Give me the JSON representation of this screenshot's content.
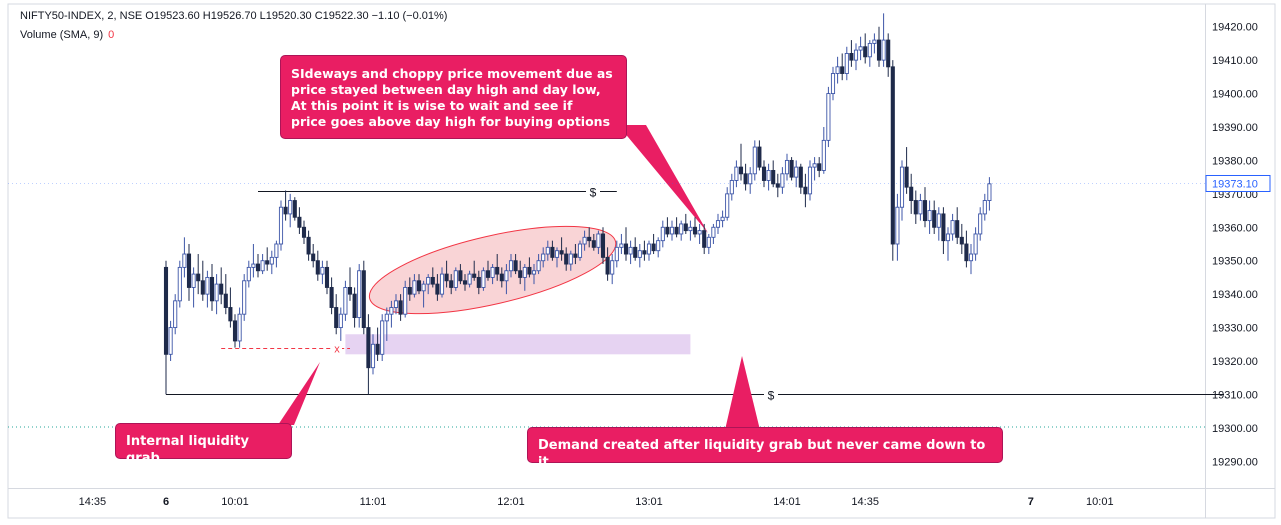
{
  "header": {
    "symbol_line": "NIFTY50-INDEX, 2, NSE  O19523.60  H19526.70  L19520.30  C19522.30  −1.10 (−0.01%)",
    "volume_label": "Volume (SMA, 9)",
    "volume_value": "0"
  },
  "colors": {
    "up_candle": "#3d56a8",
    "down_candle": "#1e2a4a",
    "callout_bg": "#e91e63",
    "demand_zone": "#e6d3f2",
    "ellipse_fill": "#f7c5c8",
    "ellipse_stroke": "#f23645",
    "price_tag": "#2962ff"
  },
  "annotations": {
    "sideways_lines": [
      "SIdeways and choppy price movement due as",
      "price stayed between day high and day low,",
      "At this point it is wise to wait and see if",
      "price goes above day high for buying options"
    ],
    "internal_liquidity": "Internal liquidity grab",
    "demand_note": "Demand created after liquidity grab but never came down to it",
    "dollar_symbol": "$",
    "x_symbol": "x"
  },
  "chart_data": {
    "type": "candlestick",
    "title": "NIFTY50-INDEX, 2, NSE",
    "ylim": [
      19285,
      19425
    ],
    "y_ticks": [
      19290,
      19300,
      19310,
      19320,
      19330,
      19340,
      19350,
      19360,
      19370,
      19380,
      19390,
      19400,
      19410,
      19420
    ],
    "y_tick_labels": [
      "19290.00",
      "19300.00",
      "19310.00",
      "19320.00",
      "19330.00",
      "19340.00",
      "19350.00",
      "19360.00",
      "19370.00",
      "19380.00",
      "19390.00",
      "19400.00",
      "19410.00",
      "19420.00"
    ],
    "last_price": 19373.1,
    "last_price_label": "19373.10",
    "x_labels": [
      {
        "label": "14:35",
        "index": -16,
        "bold": false
      },
      {
        "label": "6",
        "index": 0,
        "bold": true
      },
      {
        "label": "10:01",
        "index": 15,
        "bold": false
      },
      {
        "label": "11:01",
        "index": 45,
        "bold": false
      },
      {
        "label": "12:01",
        "index": 75,
        "bold": false
      },
      {
        "label": "13:01",
        "index": 105,
        "bold": false
      },
      {
        "label": "14:01",
        "index": 135,
        "bold": false
      },
      {
        "label": "14:35",
        "index": 152,
        "bold": false
      },
      {
        "label": "7",
        "index": 188,
        "bold": true
      },
      {
        "label": "10:01",
        "index": 203,
        "bold": false
      }
    ],
    "candles": [
      [
        19348,
        19350,
        19310,
        19322
      ],
      [
        19322,
        19332,
        19320,
        19330
      ],
      [
        19330,
        19340,
        19328,
        19338
      ],
      [
        19338,
        19350,
        19336,
        19348
      ],
      [
        19348,
        19357,
        19345,
        19352
      ],
      [
        19352,
        19355,
        19338,
        19342
      ],
      [
        19342,
        19348,
        19336,
        19346
      ],
      [
        19346,
        19352,
        19340,
        19344
      ],
      [
        19344,
        19350,
        19338,
        19340
      ],
      [
        19340,
        19347,
        19336,
        19345
      ],
      [
        19345,
        19349,
        19335,
        19338
      ],
      [
        19338,
        19346,
        19334,
        19343
      ],
      [
        19343,
        19348,
        19337,
        19340
      ],
      [
        19340,
        19346,
        19334,
        19336
      ],
      [
        19336,
        19342,
        19330,
        19332
      ],
      [
        19332,
        19334,
        19324,
        19326
      ],
      [
        19326,
        19336,
        19324,
        19334
      ],
      [
        19334,
        19346,
        19332,
        19344
      ],
      [
        19344,
        19350,
        19342,
        19348
      ],
      [
        19348,
        19355,
        19345,
        19349
      ],
      [
        19349,
        19352,
        19345,
        19347
      ],
      [
        19347,
        19352,
        19346,
        19350
      ],
      [
        19350,
        19354,
        19347,
        19349
      ],
      [
        19349,
        19353,
        19346,
        19351
      ],
      [
        19351,
        19356,
        19348,
        19355
      ],
      [
        19355,
        19368,
        19353,
        19366
      ],
      [
        19366,
        19371,
        19362,
        19364
      ],
      [
        19364,
        19370,
        19360,
        19368
      ],
      [
        19368,
        19369,
        19362,
        19363
      ],
      [
        19363,
        19366,
        19358,
        19360
      ],
      [
        19360,
        19362,
        19355,
        19357
      ],
      [
        19357,
        19359,
        19350,
        19352
      ],
      [
        19352,
        19355,
        19348,
        19350
      ],
      [
        19350,
        19353,
        19344,
        19346
      ],
      [
        19346,
        19350,
        19343,
        19348
      ],
      [
        19348,
        19350,
        19340,
        19342
      ],
      [
        19342,
        19345,
        19334,
        19336
      ],
      [
        19336,
        19340,
        19328,
        19330
      ],
      [
        19330,
        19336,
        19326,
        19334
      ],
      [
        19334,
        19344,
        19332,
        19342
      ],
      [
        19342,
        19348,
        19338,
        19340
      ],
      [
        19340,
        19342,
        19330,
        19333
      ],
      [
        19333,
        19349,
        19330,
        19347
      ],
      [
        19347,
        19350,
        19328,
        19330
      ],
      [
        19330,
        19334,
        19310,
        19318
      ],
      [
        19318,
        19328,
        19316,
        19325
      ],
      [
        19325,
        19330,
        19320,
        19322
      ],
      [
        19322,
        19334,
        19320,
        19332
      ],
      [
        19332,
        19336,
        19326,
        19334
      ],
      [
        19334,
        19338,
        19330,
        19336
      ],
      [
        19336,
        19340,
        19334,
        19338
      ],
      [
        19338,
        19340,
        19332,
        19334
      ],
      [
        19334,
        19344,
        19333,
        19342
      ],
      [
        19342,
        19345,
        19338,
        19340
      ],
      [
        19340,
        19346,
        19339,
        19344
      ],
      [
        19344,
        19346,
        19340,
        19341
      ],
      [
        19341,
        19344,
        19336,
        19343
      ],
      [
        19343,
        19346,
        19340,
        19345
      ],
      [
        19345,
        19348,
        19342,
        19343
      ],
      [
        19343,
        19346,
        19338,
        19340
      ],
      [
        19340,
        19348,
        19339,
        19346
      ],
      [
        19346,
        19350,
        19342,
        19344
      ],
      [
        19344,
        19346,
        19340,
        19342
      ],
      [
        19342,
        19348,
        19341,
        19347
      ],
      [
        19347,
        19349,
        19343,
        19344
      ],
      [
        19344,
        19346,
        19341,
        19343
      ],
      [
        19343,
        19347,
        19342,
        19346
      ],
      [
        19346,
        19350,
        19344,
        19345
      ],
      [
        19345,
        19347,
        19340,
        19342
      ],
      [
        19342,
        19348,
        19341,
        19347
      ],
      [
        19347,
        19350,
        19344,
        19345
      ],
      [
        19345,
        19349,
        19343,
        19348
      ],
      [
        19348,
        19352,
        19344,
        19346
      ],
      [
        19346,
        19348,
        19342,
        19344
      ],
      [
        19344,
        19349,
        19340,
        19347
      ],
      [
        19347,
        19352,
        19345,
        19350
      ],
      [
        19350,
        19352,
        19346,
        19347
      ],
      [
        19347,
        19350,
        19343,
        19345
      ],
      [
        19345,
        19349,
        19341,
        19348
      ],
      [
        19348,
        19351,
        19345,
        19346
      ],
      [
        19346,
        19349,
        19343,
        19347
      ],
      [
        19347,
        19352,
        19346,
        19350
      ],
      [
        19350,
        19354,
        19348,
        19352
      ],
      [
        19352,
        19356,
        19350,
        19354
      ],
      [
        19354,
        19356,
        19350,
        19351
      ],
      [
        19351,
        19354,
        19348,
        19353
      ],
      [
        19353,
        19357,
        19350,
        19352
      ],
      [
        19352,
        19354,
        19347,
        19349
      ],
      [
        19349,
        19353,
        19347,
        19352
      ],
      [
        19352,
        19355,
        19349,
        19351
      ],
      [
        19351,
        19356,
        19350,
        19355
      ],
      [
        19355,
        19359,
        19353,
        19357
      ],
      [
        19357,
        19360,
        19354,
        19356
      ],
      [
        19356,
        19358,
        19353,
        19354
      ],
      [
        19354,
        19359,
        19352,
        19358
      ],
      [
        19358,
        19360,
        19349,
        19351
      ],
      [
        19351,
        19354,
        19344,
        19346
      ],
      [
        19346,
        19352,
        19343,
        19350
      ],
      [
        19350,
        19356,
        19348,
        19354
      ],
      [
        19354,
        19358,
        19352,
        19355
      ],
      [
        19355,
        19360,
        19350,
        19352
      ],
      [
        19352,
        19356,
        19349,
        19354
      ],
      [
        19354,
        19357,
        19350,
        19351
      ],
      [
        19351,
        19355,
        19348,
        19353
      ],
      [
        19353,
        19356,
        19350,
        19352
      ],
      [
        19352,
        19356,
        19350,
        19355
      ],
      [
        19355,
        19358,
        19352,
        19353
      ],
      [
        19353,
        19357,
        19351,
        19356
      ],
      [
        19356,
        19362,
        19354,
        19360
      ],
      [
        19360,
        19363,
        19357,
        19358
      ],
      [
        19358,
        19362,
        19356,
        19360
      ],
      [
        19360,
        19363,
        19357,
        19358
      ],
      [
        19358,
        19362,
        19356,
        19361
      ],
      [
        19361,
        19364,
        19358,
        19359
      ],
      [
        19359,
        19362,
        19356,
        19360
      ],
      [
        19360,
        19363,
        19357,
        19358
      ],
      [
        19358,
        19361,
        19355,
        19359
      ],
      [
        19359,
        19361,
        19352,
        19354
      ],
      [
        19354,
        19358,
        19352,
        19357
      ],
      [
        19357,
        19361,
        19355,
        19360
      ],
      [
        19360,
        19364,
        19358,
        19362
      ],
      [
        19362,
        19365,
        19360,
        19363
      ],
      [
        19363,
        19372,
        19362,
        19370
      ],
      [
        19370,
        19376,
        19368,
        19374
      ],
      [
        19374,
        19380,
        19372,
        19378
      ],
      [
        19378,
        19385,
        19374,
        19376
      ],
      [
        19376,
        19379,
        19371,
        19373
      ],
      [
        19373,
        19378,
        19370,
        19376
      ],
      [
        19376,
        19386,
        19374,
        19384
      ],
      [
        19384,
        19386,
        19377,
        19378
      ],
      [
        19378,
        19380,
        19372,
        19374
      ],
      [
        19374,
        19379,
        19371,
        19377
      ],
      [
        19377,
        19380,
        19372,
        19373
      ],
      [
        19373,
        19376,
        19369,
        19372
      ],
      [
        19372,
        19378,
        19370,
        19376
      ],
      [
        19376,
        19382,
        19374,
        19380
      ],
      [
        19380,
        19381,
        19374,
        19375
      ],
      [
        19375,
        19380,
        19372,
        19378
      ],
      [
        19378,
        19379,
        19370,
        19372
      ],
      [
        19372,
        19376,
        19366,
        19370
      ],
      [
        19370,
        19380,
        19368,
        19378
      ],
      [
        19378,
        19381,
        19374,
        19379
      ],
      [
        19379,
        19381,
        19375,
        19377
      ],
      [
        19377,
        19390,
        19376,
        19386
      ],
      [
        19386,
        19402,
        19384,
        19400
      ],
      [
        19400,
        19408,
        19398,
        19406
      ],
      [
        19406,
        19411,
        19403,
        19408
      ],
      [
        19408,
        19412,
        19404,
        19406
      ],
      [
        19406,
        19414,
        19404,
        19412
      ],
      [
        19412,
        19416,
        19408,
        19410
      ],
      [
        19410,
        19415,
        19407,
        19413
      ],
      [
        19413,
        19417,
        19410,
        19414
      ],
      [
        19414,
        19418,
        19409,
        19411
      ],
      [
        19411,
        19416,
        19408,
        19415
      ],
      [
        19415,
        19418,
        19412,
        19416
      ],
      [
        19416,
        19420,
        19408,
        19410
      ],
      [
        19410,
        19424,
        19408,
        19416
      ],
      [
        19416,
        19418,
        19405,
        19408
      ],
      [
        19408,
        19410,
        19350,
        19355
      ],
      [
        19355,
        19370,
        19350,
        19366
      ],
      [
        19366,
        19380,
        19362,
        19378
      ],
      [
        19378,
        19384,
        19370,
        19372
      ],
      [
        19372,
        19376,
        19364,
        19368
      ],
      [
        19368,
        19371,
        19361,
        19364
      ],
      [
        19364,
        19370,
        19362,
        19368
      ],
      [
        19368,
        19372,
        19360,
        19362
      ],
      [
        19362,
        19368,
        19358,
        19365
      ],
      [
        19365,
        19368,
        19358,
        19360
      ],
      [
        19360,
        19366,
        19356,
        19364
      ],
      [
        19364,
        19366,
        19352,
        19356
      ],
      [
        19356,
        19360,
        19350,
        19358
      ],
      [
        19358,
        19364,
        19356,
        19362
      ],
      [
        19362,
        19366,
        19355,
        19357
      ],
      [
        19357,
        19361,
        19352,
        19355
      ],
      [
        19355,
        19359,
        19348,
        19350
      ],
      [
        19350,
        19355,
        19346,
        19352
      ],
      [
        19352,
        19360,
        19350,
        19358
      ],
      [
        19358,
        19366,
        19356,
        19364
      ],
      [
        19364,
        19370,
        19362,
        19368
      ],
      [
        19368,
        19375,
        19365,
        19373
      ]
    ],
    "levels": [
      {
        "name": "day-high-line",
        "price": 19371,
        "from_index": 20,
        "to_index": 98
      },
      {
        "name": "day-low-line",
        "price": 19310,
        "from_index": 0,
        "to_index": 230
      },
      {
        "name": "internal-low-line",
        "price": 19324,
        "from_index": 12,
        "to_index": 40
      }
    ],
    "demand_zone": {
      "price_low": 19322,
      "price_high": 19328,
      "from_index": 39,
      "to_index": 114
    },
    "ellipse": {
      "from_index": 44,
      "to_index": 98,
      "price_center": 19348.5
    }
  }
}
